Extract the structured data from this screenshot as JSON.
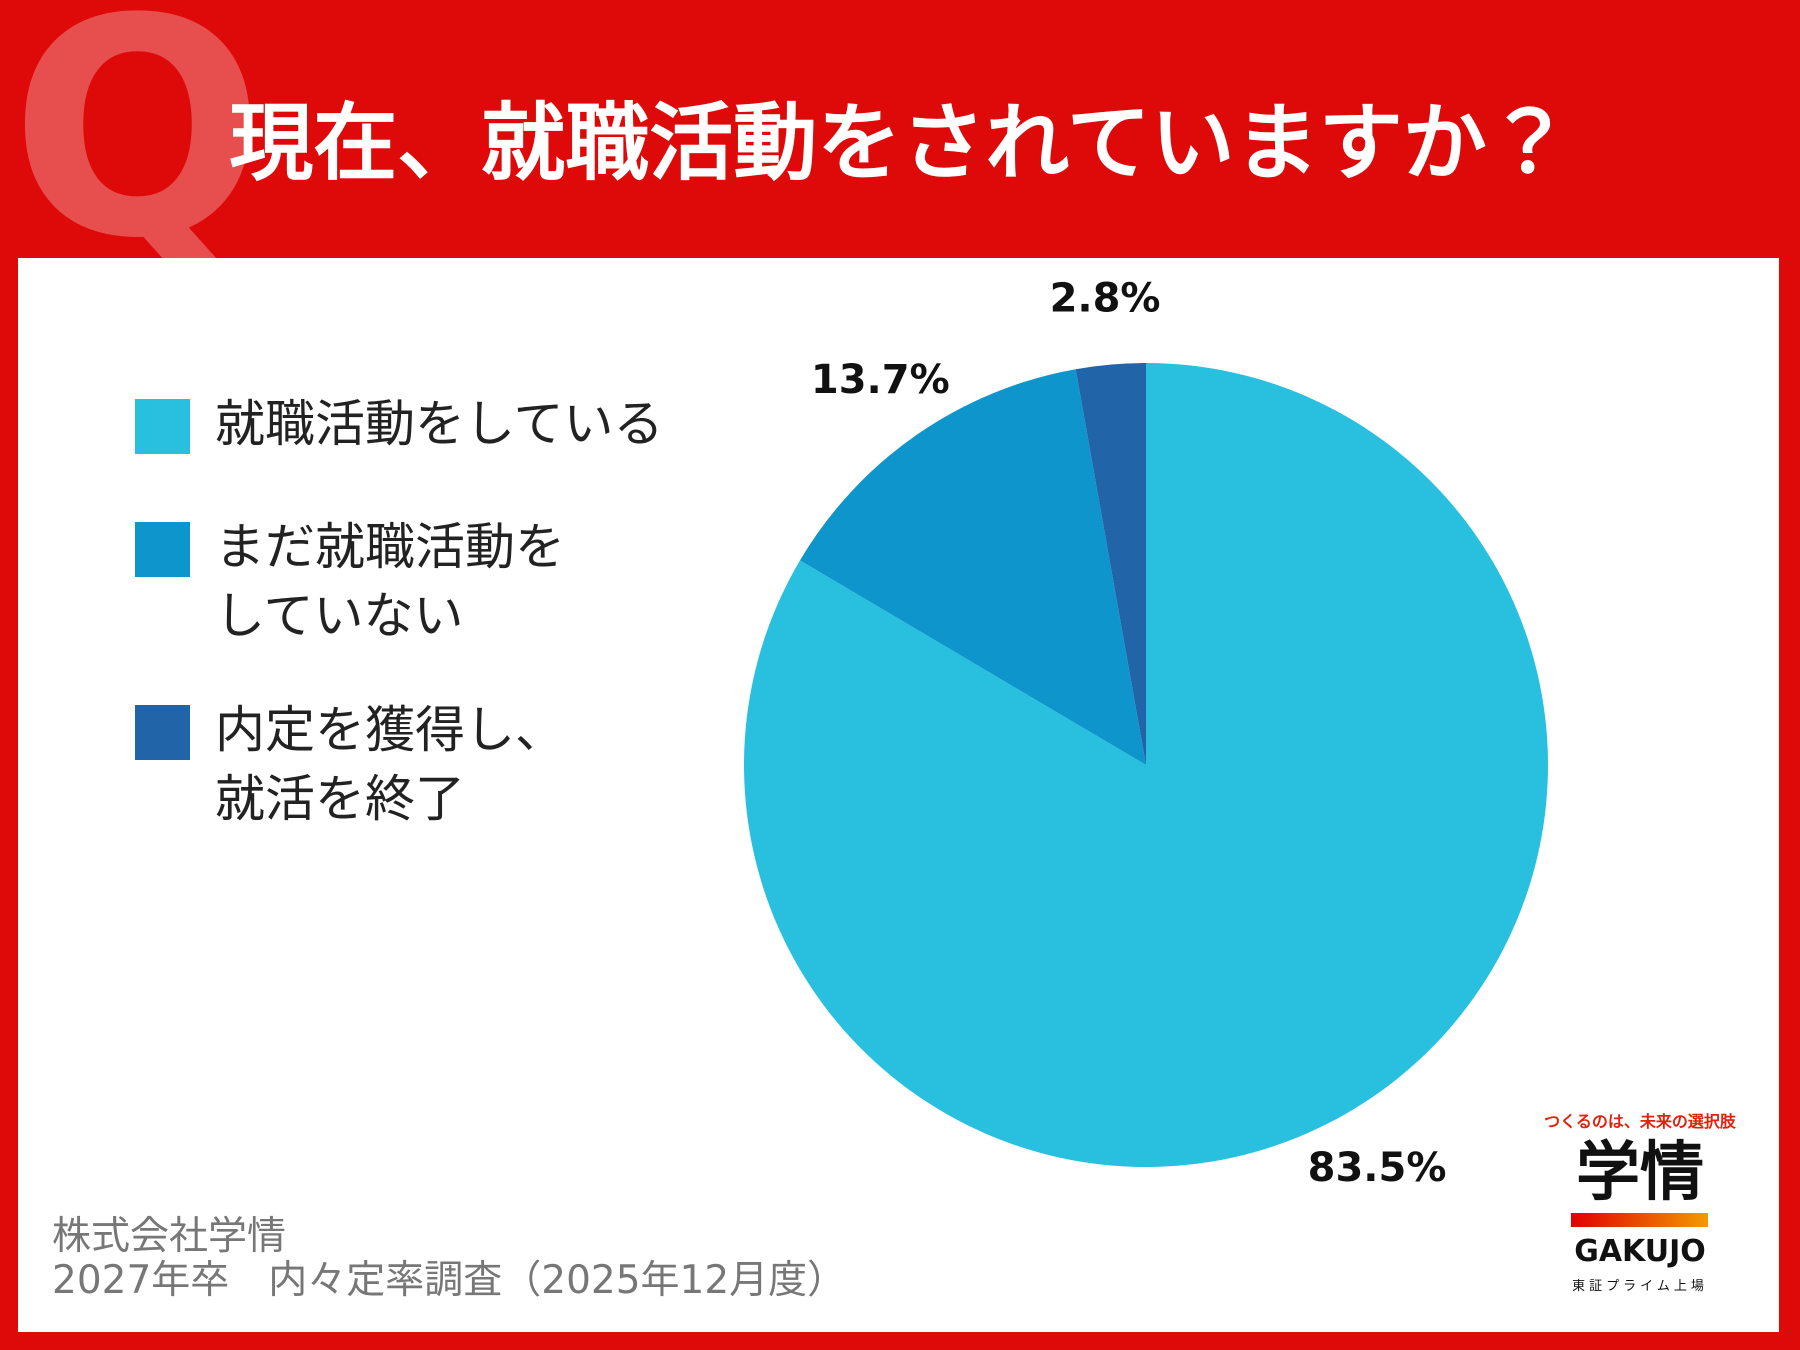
{
  "chart_data": {
    "type": "pie",
    "title": "現在、就職活動をされていますか？",
    "categories": [
      "就職活動をしている",
      "まだ就職活動を\nしていない",
      "内定を獲得し、\n就活を終了"
    ],
    "values": [
      83.5,
      13.7,
      2.8
    ],
    "value_labels": [
      "83.5%",
      "13.7%",
      "2.8%"
    ],
    "colors": [
      "#29c0e0",
      "#0e95cb",
      "#2164a8"
    ],
    "source": [
      "株式会社学情",
      "2027年卒　内々定率調査（2025年12月度）"
    ],
    "logo": {
      "tagline": "つくるのは、未来の選択肢",
      "name": "学情",
      "roman": "GAKUJO",
      "listing": "東証プライム上場"
    }
  }
}
